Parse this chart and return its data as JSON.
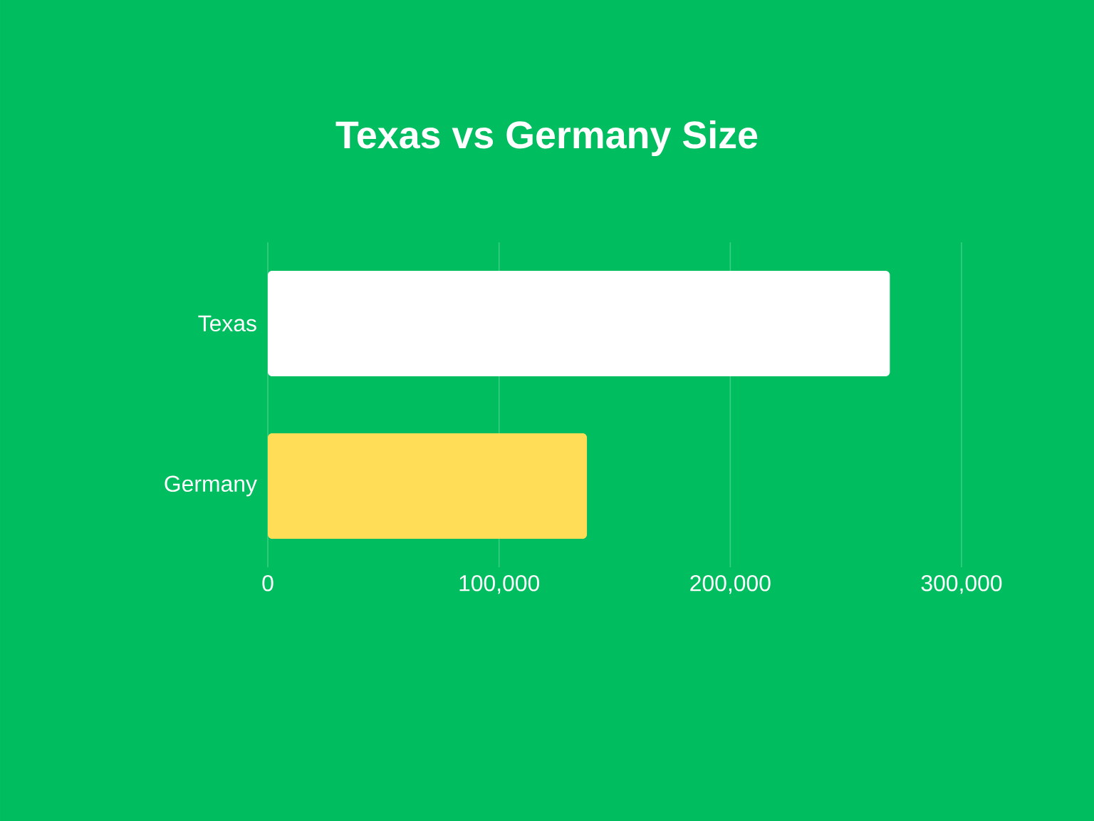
{
  "chart_data": {
    "type": "bar",
    "orientation": "horizontal",
    "title": "Texas vs Germany Size",
    "categories": [
      "Texas",
      "Germany"
    ],
    "values": [
      269000,
      138000
    ],
    "colors": [
      "#ffffff",
      "#ffdd57"
    ],
    "xlim": [
      0,
      300000
    ],
    "xticks": [
      {
        "value": 0,
        "label": "0"
      },
      {
        "value": 100000,
        "label": "100,000"
      },
      {
        "value": 200000,
        "label": "200,000"
      },
      {
        "value": 300000,
        "label": "300,000"
      }
    ],
    "grid": "x"
  }
}
